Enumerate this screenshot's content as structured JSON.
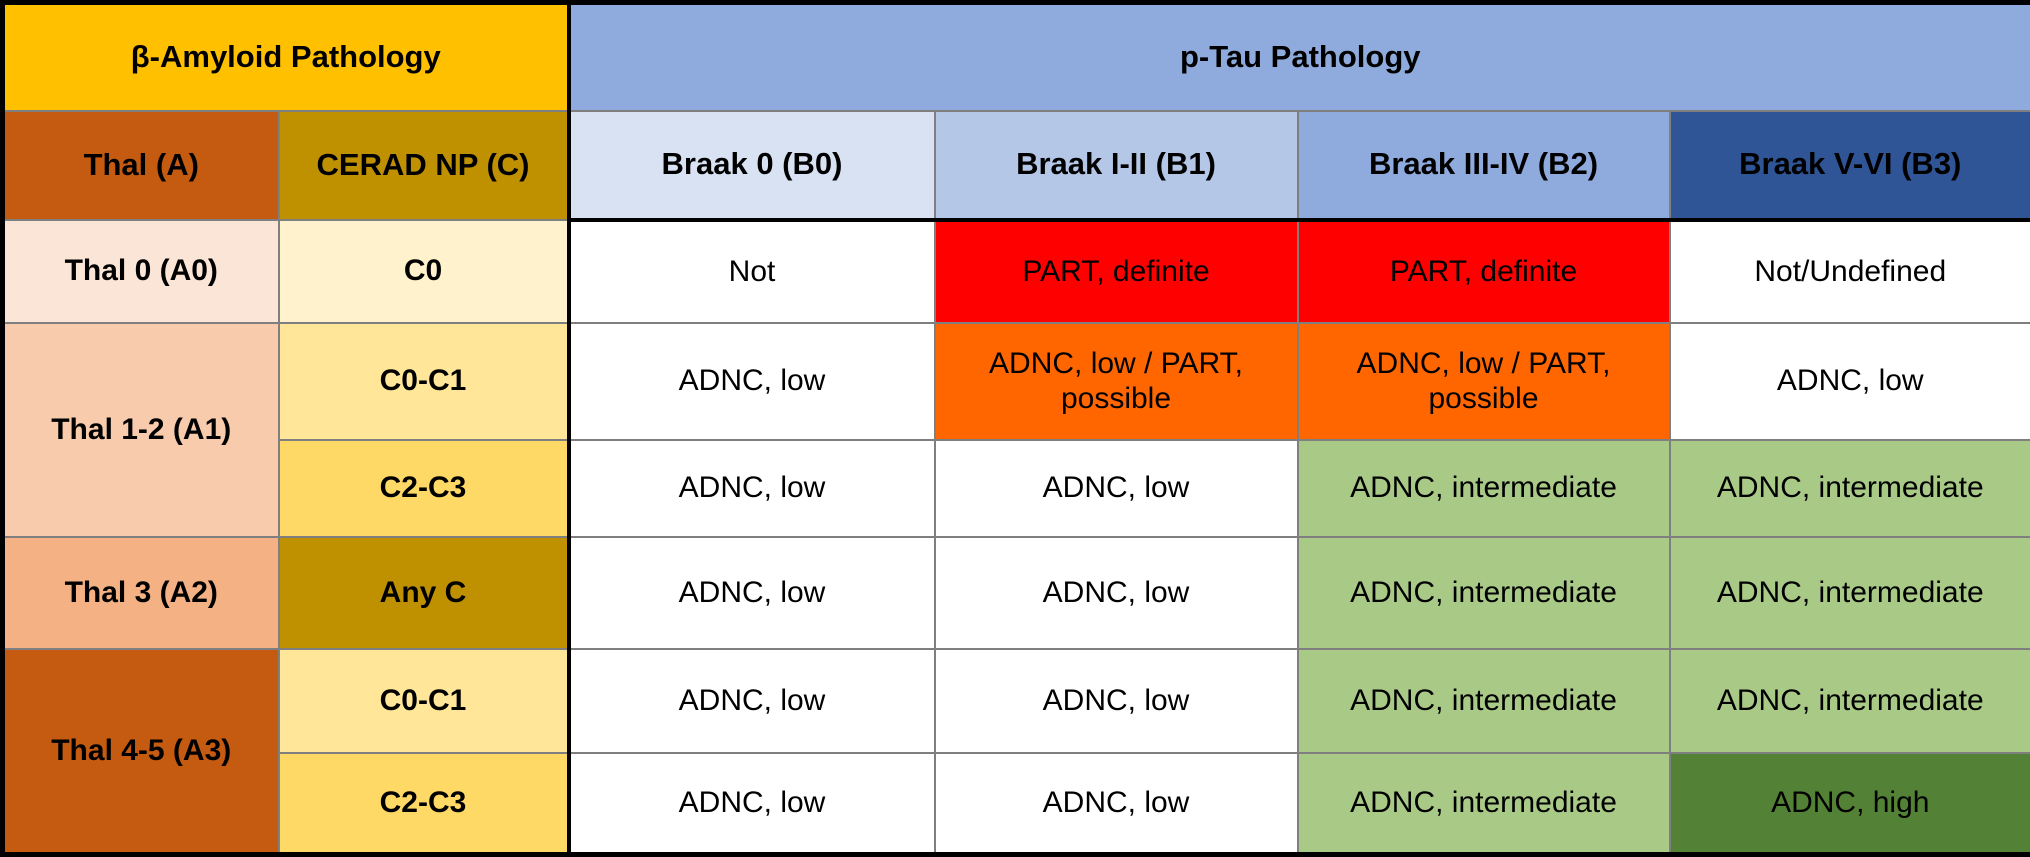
{
  "colors": {
    "gold_header": "#FFC000",
    "blue_header": "#8FAADC",
    "dark_orange": "#C55A11",
    "dark_gold": "#BF9000",
    "braak0_blue": "#D9E2F3",
    "braak1_blue": "#B4C7E7",
    "braak2_blue": "#8FAADC",
    "braak3_blue": "#2F5597",
    "thal0_peach": "#FBE5D6",
    "thal12_peach": "#F8CBAD",
    "thal3_peach": "#F4B183",
    "c0_cream": "#FFF2CC",
    "c0c1_yellow": "#FFE699",
    "c2c3_yellow": "#FFD966",
    "red_cell": "#FF0000",
    "orange_cell": "#FF6600",
    "green_light": "#A9C987",
    "green_dark": "#538135",
    "white_cell": "#FFFFFF",
    "grid_line": "#7F7F7F",
    "black_line": "#000000"
  },
  "table": {
    "group_headers": [
      {
        "label": "β-Amyloid Pathology",
        "colspan": 2,
        "bg": "#FFC000"
      },
      {
        "label": "p-Tau Pathology",
        "colspan": 4,
        "bg": "#8FAADC",
        "black_left": true
      }
    ],
    "column_headers": [
      {
        "label": "Thal (A)",
        "bg": "#C55A11"
      },
      {
        "label": "CERAD NP (C)",
        "bg": "#BF9000"
      },
      {
        "label": "Braak 0 (B0)",
        "bg": "#D9E2F3",
        "black_left": true,
        "black_bottom": true
      },
      {
        "label": "Braak I-II (B1)",
        "bg": "#B4C7E7",
        "black_bottom": true
      },
      {
        "label": "Braak III-IV (B2)",
        "bg": "#8FAADC",
        "black_bottom": true
      },
      {
        "label": "Braak V-VI (B3)",
        "bg": "#2F5597",
        "black_bottom": true
      }
    ],
    "rows": [
      [
        {
          "text": "Thal 0 (A0)",
          "bg": "#FBE5D6",
          "bold": true
        },
        {
          "text": "C0",
          "bg": "#FFF2CC",
          "bold": true
        },
        {
          "text": "Not",
          "bg": "#FFFFFF",
          "black_left": true
        },
        {
          "text": "PART, definite",
          "bg": "#FF0000"
        },
        {
          "text": "PART, definite",
          "bg": "#FF0000"
        },
        {
          "text": "Not/Undefined",
          "bg": "#FFFFFF"
        }
      ],
      [
        {
          "text": "Thal 1-2 (A1)",
          "bg": "#F8CBAD",
          "bold": true,
          "rowspan": 2
        },
        {
          "text": "C0-C1",
          "bg": "#FFE699",
          "bold": true
        },
        {
          "text": "ADNC, low",
          "bg": "#FFFFFF",
          "black_left": true
        },
        {
          "text": "ADNC, low / PART, possible",
          "bg": "#FF6600"
        },
        {
          "text": "ADNC, low / PART, possible",
          "bg": "#FF6600"
        },
        {
          "text": "ADNC, low",
          "bg": "#FFFFFF"
        }
      ],
      [
        {
          "text": "C2-C3",
          "bg": "#FFD966",
          "bold": true
        },
        {
          "text": "ADNC, low",
          "bg": "#FFFFFF",
          "black_left": true
        },
        {
          "text": "ADNC, low",
          "bg": "#FFFFFF"
        },
        {
          "text": "ADNC, intermediate",
          "bg": "#A9C987"
        },
        {
          "text": "ADNC, intermediate",
          "bg": "#A9C987"
        }
      ],
      [
        {
          "text": "Thal 3 (A2)",
          "bg": "#F4B183",
          "bold": true
        },
        {
          "text": "Any C",
          "bg": "#BF9000",
          "bold": true
        },
        {
          "text": "ADNC, low",
          "bg": "#FFFFFF",
          "black_left": true
        },
        {
          "text": "ADNC, low",
          "bg": "#FFFFFF"
        },
        {
          "text": "ADNC, intermediate",
          "bg": "#A9C987"
        },
        {
          "text": "ADNC, intermediate",
          "bg": "#A9C987"
        }
      ],
      [
        {
          "text": "Thal 4-5 (A3)",
          "bg": "#C55A11",
          "bold": true,
          "rowspan": 2
        },
        {
          "text": "C0-C1",
          "bg": "#FFE699",
          "bold": true
        },
        {
          "text": "ADNC, low",
          "bg": "#FFFFFF",
          "black_left": true
        },
        {
          "text": "ADNC, low",
          "bg": "#FFFFFF"
        },
        {
          "text": "ADNC, intermediate",
          "bg": "#A9C987"
        },
        {
          "text": "ADNC, intermediate",
          "bg": "#A9C987"
        }
      ],
      [
        {
          "text": "C2-C3",
          "bg": "#FFD966",
          "bold": true
        },
        {
          "text": "ADNC, low",
          "bg": "#FFFFFF",
          "black_left": true
        },
        {
          "text": "ADNC, low",
          "bg": "#FFFFFF"
        },
        {
          "text": "ADNC, intermediate",
          "bg": "#A9C987"
        },
        {
          "text": "ADNC, high",
          "bg": "#538135"
        }
      ]
    ]
  }
}
